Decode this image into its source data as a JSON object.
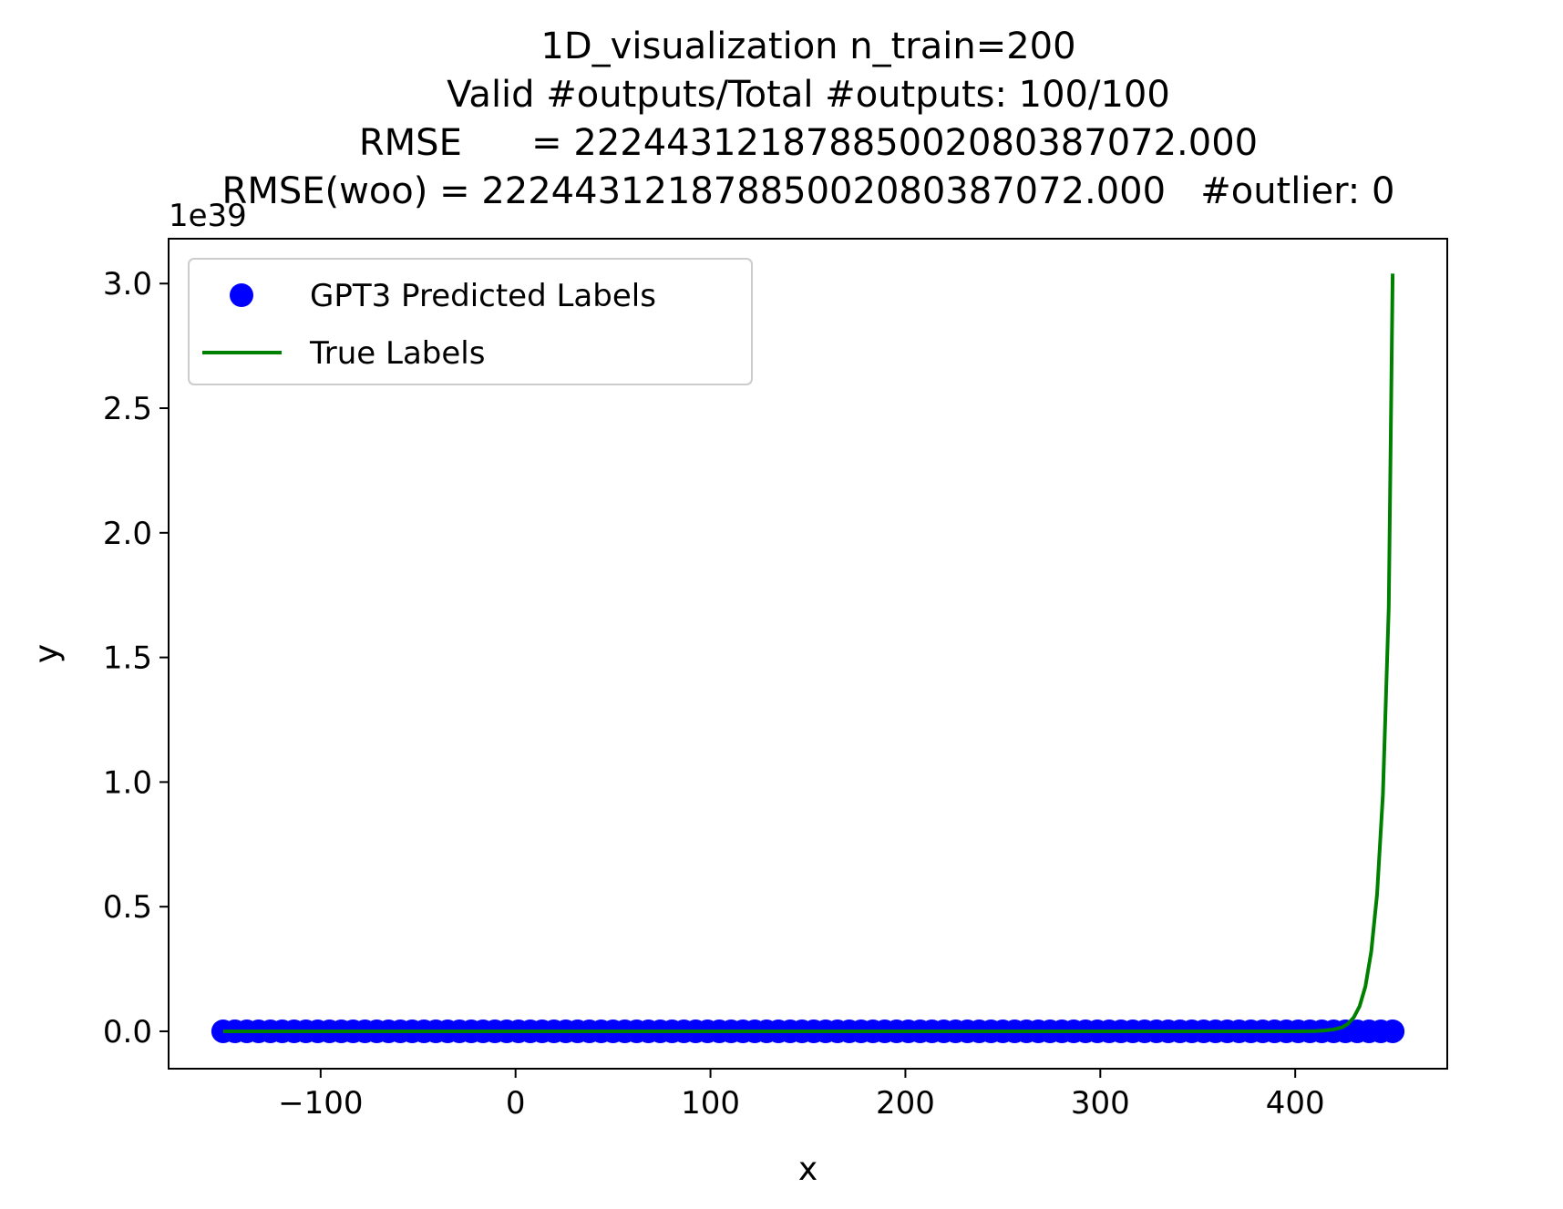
{
  "chart_data": {
    "type": "scatter",
    "title_lines": [
      "1D_visualization  n_train=200",
      "Valid #outputs/Total #outputs: 100/100",
      "RMSE      = 22244312187885002080387072.000",
      "RMSE(woo) = 22244312187885002080387072.000   #outlier: 0"
    ],
    "xlabel": "x",
    "ylabel": "y",
    "y_offset_label": "1e39",
    "xlim": [
      -178,
      478
    ],
    "ylim": [
      -0.15,
      3.18
    ],
    "y_scale_exponent": 39,
    "xticks": [
      -100,
      0,
      100,
      200,
      300,
      400
    ],
    "xtick_labels": [
      "−100",
      "0",
      "100",
      "200",
      "300",
      "400"
    ],
    "yticks": [
      0.0,
      0.5,
      1.0,
      1.5,
      2.0,
      2.5,
      3.0
    ],
    "ytick_labels": [
      "0.0",
      "0.5",
      "1.0",
      "1.5",
      "2.0",
      "2.5",
      "3.0"
    ],
    "legend_position": "upper-left",
    "series": [
      {
        "name": "GPT3 Predicted Labels",
        "kind": "scatter",
        "color": "#0000ff",
        "x_range": [
          -150,
          450
        ],
        "n_points": 100,
        "y_constant": 0.0
      },
      {
        "name": "True Labels",
        "kind": "line",
        "color": "#008000",
        "x": [
          -150,
          400,
          410,
          415,
          420,
          424,
          427,
          430,
          433,
          436,
          439,
          442,
          445,
          448,
          450
        ],
        "y": [
          0.0,
          0.0,
          0.001,
          0.003,
          0.008,
          0.016,
          0.03,
          0.055,
          0.1,
          0.18,
          0.32,
          0.55,
          0.95,
          1.7,
          3.04
        ]
      }
    ]
  }
}
